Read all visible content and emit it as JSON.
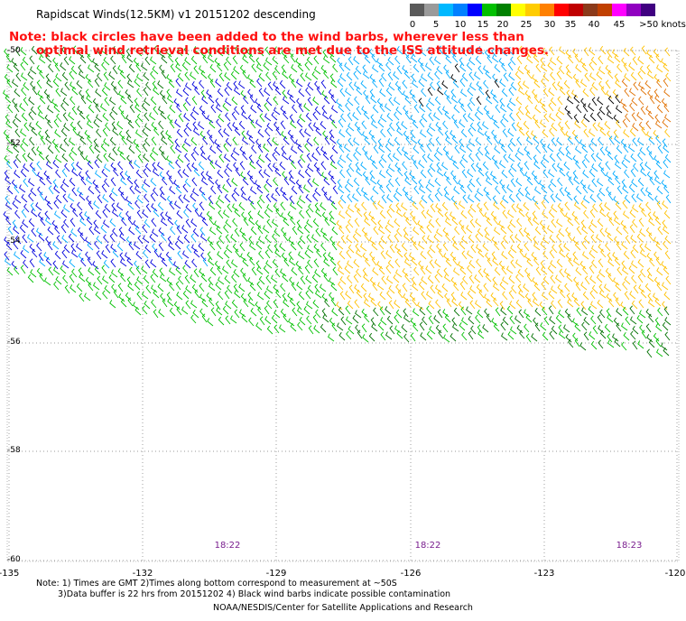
{
  "title": "Rapidscat Winds(12.5KM) v1 20151202 descending",
  "note": {
    "line1": "Note: black circles have been added to the wind barbs, wherever less than",
    "line2": "optimal wind retrieval conditions are met due to the ISS attitude changes."
  },
  "legend": {
    "labels": [
      "0",
      "5",
      "10",
      "15",
      "20",
      "25",
      "30",
      "35",
      "40",
      "45",
      ">50 knots"
    ],
    "colors": [
      "#5a5a5a",
      "#9a9a9a",
      "#00b8ff",
      "#0080ff",
      "#0000ff",
      "#00c000",
      "#008000",
      "#ffff00",
      "#ffcc00",
      "#ff8000",
      "#ff0000",
      "#c00000",
      "#8b3a1a",
      "#c04000",
      "#ff00ff",
      "#9000c0",
      "#400080"
    ]
  },
  "latitude_labels": [
    "-50",
    "-52",
    "-54",
    "-56",
    "-58",
    "-60"
  ],
  "longitude_labels": [
    "-135",
    "-132",
    "-129",
    "-126",
    "-123",
    "-120"
  ],
  "time_labels": [
    "18:22",
    "18:22",
    "18:23"
  ],
  "footnote": {
    "line1": "Note: 1) Times are GMT 2)Times along bottom correspond to measurement at ~50S",
    "line2": "3)Data buffer is 22 hrs from 20151202 4) Black wind barbs indicate possible contamination"
  },
  "credit": "NOAA/NESDIS/Center for Satellite Applications and Research",
  "wind_colors": {
    "light_blue": "#00aaff",
    "blue": "#0000dd",
    "green": "#00c000",
    "dark_green": "#007000",
    "yellow": "#ffe800",
    "gold": "#ffc000",
    "orange": "#e07000",
    "black": "#000000"
  }
}
